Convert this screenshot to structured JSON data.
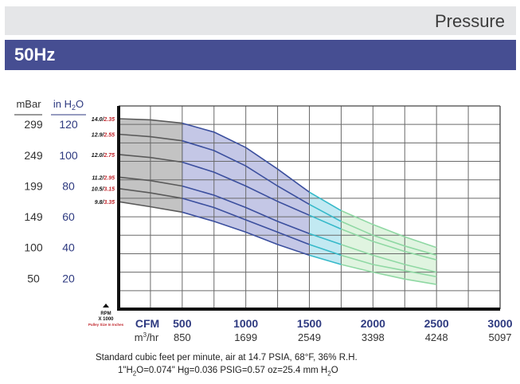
{
  "header": {
    "title": "Pressure",
    "frequency": "50Hz"
  },
  "axes": {
    "mbar_label": "mBar",
    "inh2o_label_prefix": "in H",
    "inh2o_label_sub": "2",
    "inh2o_label_suffix": "O",
    "cfm_label": "CFM",
    "m3hr_label_prefix": "m",
    "m3hr_label_sup": "3",
    "m3hr_label_suffix": "/hr",
    "rpm_label": "RPM",
    "rpm_multiplier": "X 1000",
    "pulley_note": "Pulley Size In Inches"
  },
  "footnote": {
    "line1": "Standard cubic feet per minute, air at 14.7 PSIA, 68°F, 36% R.H.",
    "line2_a": "1\"H",
    "line2_sub": "2",
    "line2_b": "O=0.074\" Hg=0.036 PSIG=0.57 oz=25.4 mm H",
    "line2_sub2": "2",
    "line2_c": "O"
  },
  "colors": {
    "header_band": "#e5e6e8",
    "hz_band": "#464e92",
    "gray_curve": "#5a5a5a",
    "blue_curve": "#3b4f9e",
    "cyan_curve": "#35b9c9",
    "green_curve": "#8fd8a3",
    "gray_fill": "#b9b9b9",
    "blue_fill": "#b5b9e0",
    "cyan_fill": "#b3e3ef",
    "green_fill": "#d5f0d6",
    "red_label": "#c1272d",
    "axis_blue": "#2e3a80"
  },
  "chart_data": {
    "type": "line",
    "title": "Pressure 50Hz",
    "xlabel": "CFM",
    "xlabel_secondary": "m3/hr",
    "ylabel": "mBar",
    "ylabel_secondary": "in H2O",
    "xlim": [
      0,
      3000
    ],
    "ylim": [
      0,
      132
    ],
    "x_ticks": [
      {
        "cfm": 500,
        "cfm_label": "500",
        "m3hr_label": "850"
      },
      {
        "cfm": 1000,
        "cfm_label": "1000",
        "m3hr_label": "1699"
      },
      {
        "cfm": 1500,
        "cfm_label": "1500",
        "m3hr_label": "2549"
      },
      {
        "cfm": 2000,
        "cfm_label": "2000",
        "m3hr_label": "3398"
      },
      {
        "cfm": 2500,
        "cfm_label": "2500",
        "m3hr_label": "4248"
      },
      {
        "cfm": 3000,
        "cfm_label": "3000",
        "m3hr_label": "5097"
      }
    ],
    "y_ticks": [
      {
        "inh2o": 120,
        "inh2o_label": "120",
        "mbar_label": "299"
      },
      {
        "inh2o": 100,
        "inh2o_label": "100",
        "mbar_label": "249"
      },
      {
        "inh2o": 80,
        "inh2o_label": "80",
        "mbar_label": "199"
      },
      {
        "inh2o": 60,
        "inh2o_label": "60",
        "mbar_label": "149"
      },
      {
        "inh2o": 40,
        "inh2o_label": "40",
        "mbar_label": "100"
      },
      {
        "inh2o": 20,
        "inh2o_label": "20",
        "mbar_label": "50"
      }
    ],
    "series": [
      {
        "name": "14.0/2.35",
        "rpm": "14.0",
        "pulley": "2.35",
        "gray": [
          [
            0,
            123.7
          ],
          [
            250,
            123
          ],
          [
            500,
            120.8
          ]
        ],
        "blue": [
          [
            500,
            120.8
          ],
          [
            750,
            115
          ],
          [
            1000,
            105
          ],
          [
            1250,
            91
          ],
          [
            1500,
            76
          ]
        ],
        "cyan": [
          [
            1500,
            76
          ],
          [
            1750,
            64
          ]
        ],
        "green": [
          [
            1750,
            64
          ],
          [
            2000,
            55
          ],
          [
            2250,
            47
          ],
          [
            2500,
            40
          ]
        ]
      },
      {
        "name": "12.9/2.55",
        "rpm": "12.9",
        "pulley": "2.55",
        "gray": [
          [
            0,
            113.6
          ],
          [
            250,
            112
          ],
          [
            500,
            109.4
          ]
        ],
        "blue": [
          [
            500,
            109.4
          ],
          [
            750,
            103
          ],
          [
            1000,
            93
          ],
          [
            1250,
            80
          ],
          [
            1500,
            68
          ]
        ],
        "cyan": [
          [
            1500,
            68
          ],
          [
            1750,
            57
          ]
        ],
        "green": [
          [
            1750,
            57
          ],
          [
            2000,
            48
          ],
          [
            2250,
            41
          ],
          [
            2500,
            35
          ]
        ]
      },
      {
        "name": "12.0/2.75",
        "rpm": "12.0",
        "pulley": "2.75",
        "gray": [
          [
            0,
            100.5
          ],
          [
            250,
            98.5
          ],
          [
            500,
            95.5
          ]
        ],
        "blue": [
          [
            500,
            95.5
          ],
          [
            750,
            89
          ],
          [
            1000,
            80
          ],
          [
            1250,
            70
          ],
          [
            1500,
            61
          ]
        ],
        "cyan": [
          [
            1500,
            61
          ],
          [
            1750,
            52
          ]
        ],
        "green": [
          [
            1750,
            52
          ],
          [
            2000,
            44
          ],
          [
            2250,
            37.5
          ],
          [
            2500,
            32
          ]
        ]
      },
      {
        "name": "11.2/2.95",
        "rpm": "11.2",
        "pulley": "2.95",
        "gray": [
          [
            0,
            85.8
          ],
          [
            250,
            83.5
          ],
          [
            500,
            80
          ]
        ],
        "blue": [
          [
            500,
            80
          ],
          [
            750,
            74
          ],
          [
            1000,
            66
          ],
          [
            1250,
            57
          ],
          [
            1500,
            49
          ]
        ],
        "cyan": [
          [
            1500,
            49
          ],
          [
            1750,
            42
          ]
        ],
        "green": [
          [
            1750,
            42
          ],
          [
            2000,
            35
          ],
          [
            2250,
            29
          ],
          [
            2500,
            24
          ]
        ]
      },
      {
        "name": "10.5/3.15",
        "rpm": "10.5",
        "pulley": "3.15",
        "gray": [
          [
            0,
            78.3
          ],
          [
            250,
            75.5
          ],
          [
            500,
            72
          ]
        ],
        "blue": [
          [
            500,
            72
          ],
          [
            750,
            66
          ],
          [
            1000,
            58
          ],
          [
            1250,
            50
          ],
          [
            1500,
            42
          ]
        ],
        "cyan": [
          [
            1500,
            42
          ],
          [
            1750,
            35
          ]
        ],
        "green": [
          [
            1750,
            35
          ],
          [
            2000,
            29
          ],
          [
            2250,
            25
          ],
          [
            2500,
            21
          ]
        ]
      },
      {
        "name": "9.8/3.35",
        "rpm": "9.8",
        "pulley": "3.35",
        "gray": [
          [
            0,
            69.8
          ],
          [
            250,
            66.5
          ],
          [
            500,
            63
          ]
        ],
        "blue": [
          [
            500,
            63
          ],
          [
            750,
            57
          ],
          [
            1000,
            50
          ],
          [
            1250,
            42
          ],
          [
            1500,
            35
          ]
        ],
        "cyan": [
          [
            1500,
            35
          ],
          [
            1750,
            29
          ]
        ],
        "green": [
          [
            1750,
            29
          ],
          [
            2000,
            24
          ],
          [
            2250,
            19.5
          ],
          [
            2500,
            16
          ]
        ]
      }
    ]
  }
}
